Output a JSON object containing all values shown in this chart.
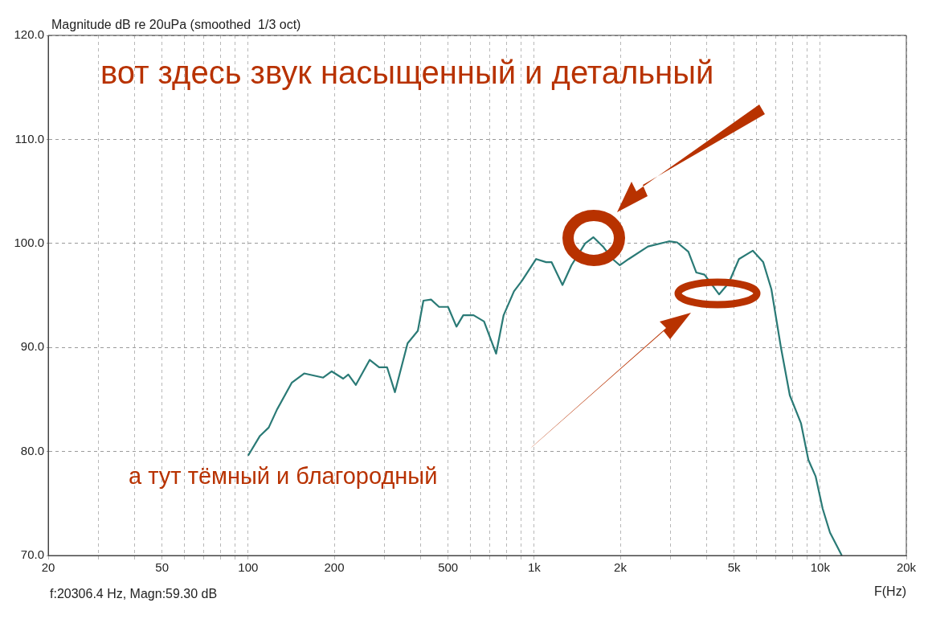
{
  "chart_data": {
    "type": "line",
    "title": "Magnitude dB re 20uPa (smoothed  1/3 oct)",
    "xlabel": "F(Hz)",
    "annotations": [
      "вот здесь звук насыщенный и детальный",
      "а тут тёмный и благородный",
      "f:20306.4 Hz, Magn:59.30 dB"
    ],
    "log": "x",
    "grid": true,
    "legend": false,
    "marker": "none",
    "line_style": "solid",
    "xlim": [
      20,
      20000
    ],
    "xticks": [
      20,
      {
        "value": 30,
        "label": null
      },
      {
        "value": 40,
        "label": null
      },
      50,
      {
        "value": 60,
        "label": null
      },
      {
        "value": 70,
        "label": null
      },
      {
        "value": 80,
        "label": null
      },
      {
        "value": 90,
        "label": null
      },
      100,
      200,
      {
        "value": 300,
        "label": null
      },
      {
        "value": 400,
        "label": null
      },
      500,
      {
        "value": 600,
        "label": null
      },
      {
        "value": 700,
        "label": null
      },
      {
        "value": 800,
        "label": null
      },
      {
        "value": 900,
        "label": null
      },
      {
        "value": 1000,
        "label": "1k"
      },
      {
        "value": 2000,
        "label": "2k"
      },
      {
        "value": 3000,
        "label": null
      },
      {
        "value": 4000,
        "label": null
      },
      {
        "value": 5000,
        "label": "5k"
      },
      {
        "value": 6000,
        "label": null
      },
      {
        "value": 7000,
        "label": null
      },
      {
        "value": 8000,
        "label": null
      },
      {
        "value": 9000,
        "label": null
      },
      {
        "value": 10000,
        "label": "10k"
      },
      {
        "value": 20000,
        "label": "20k"
      }
    ],
    "ylim": [
      70,
      120
    ],
    "yticks": [
      {
        "value": 70,
        "label": "70.0"
      },
      {
        "value": 80,
        "label": "80.0"
      },
      {
        "value": 90,
        "label": "90.0"
      },
      {
        "value": 100,
        "label": "100.0"
      },
      {
        "value": 110,
        "label": "110.0"
      },
      {
        "value": 120,
        "label": "120.0"
      }
    ],
    "series": [
      {
        "color": "#2a7a76",
        "x": [
          100,
          110,
          118,
          126,
          142,
          157,
          183,
          196,
          215,
          224,
          238,
          266,
          287,
          306,
          326,
          361,
          392,
          410,
          436,
          465,
          500,
          535,
          565,
          614,
          668,
          736,
          782,
          850,
          906,
          1016,
          1101,
          1150,
          1256,
          1350,
          1507,
          1610,
          1740,
          1880,
          1993,
          2140,
          2500,
          2960,
          3160,
          3460,
          3690,
          3940,
          4430,
          4790,
          5200,
          5810,
          6320,
          6750,
          7290,
          7830,
          8570,
          9090,
          9640,
          10200,
          10820,
          11900
        ],
        "values": [
          79.6,
          81.5,
          82.3,
          84.0,
          86.6,
          87.5,
          87.1,
          87.7,
          87.0,
          87.4,
          86.4,
          88.8,
          88.1,
          88.1,
          85.7,
          90.4,
          91.6,
          94.5,
          94.6,
          93.9,
          93.9,
          92.0,
          93.1,
          93.1,
          92.5,
          89.4,
          93.1,
          95.4,
          96.4,
          98.5,
          98.2,
          98.2,
          96.0,
          97.9,
          100.0,
          100.6,
          99.7,
          98.5,
          97.9,
          98.5,
          99.7,
          100.2,
          100.1,
          99.2,
          97.2,
          97.0,
          95.1,
          96.2,
          98.5,
          99.3,
          98.2,
          95.6,
          90.0,
          85.4,
          82.7,
          79.2,
          77.6,
          74.5,
          72.2,
          70.0
        ]
      }
    ]
  }
}
